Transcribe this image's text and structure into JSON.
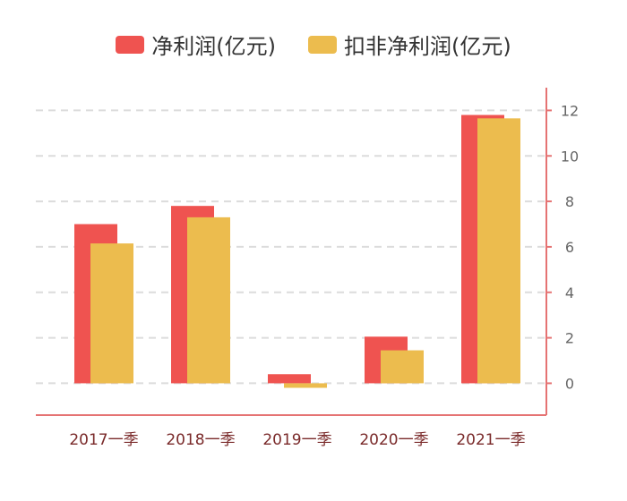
{
  "chart_data": {
    "type": "bar",
    "categories": [
      "2017一季",
      "2018一季",
      "2019一季",
      "2020一季",
      "2021一季"
    ],
    "series": [
      {
        "name": "净利润(亿元)",
        "color": "#EF5350",
        "values": [
          7.0,
          7.8,
          0.4,
          2.05,
          11.8
        ]
      },
      {
        "name": "扣非净利润(亿元)",
        "color": "#ECBC4E",
        "values": [
          6.15,
          7.3,
          -0.2,
          1.45,
          11.65
        ]
      }
    ],
    "yaxis": {
      "ticks": [
        0,
        2,
        4,
        6,
        8,
        10,
        12
      ],
      "range": [
        -1.4,
        13.0
      ],
      "side": "right"
    },
    "grid": true,
    "gridline_style": "dashed",
    "axis_color": "#E57373",
    "legend_position": "top-center"
  }
}
